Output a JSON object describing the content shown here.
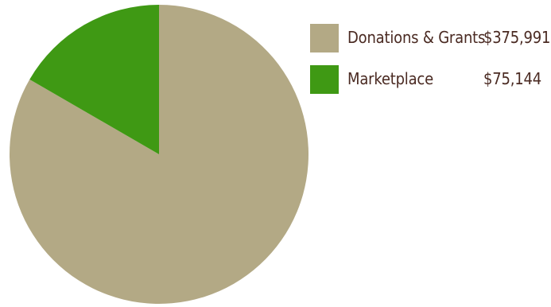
{
  "chart_data": {
    "type": "pie",
    "title": "",
    "categories": [
      "Donations & Grants",
      "Marketplace"
    ],
    "values": [
      375991,
      75144
    ],
    "value_labels": [
      "$375,991",
      "$75,144"
    ],
    "colors": [
      "#b3a985",
      "#3f9914"
    ],
    "legend_placement": "right"
  }
}
